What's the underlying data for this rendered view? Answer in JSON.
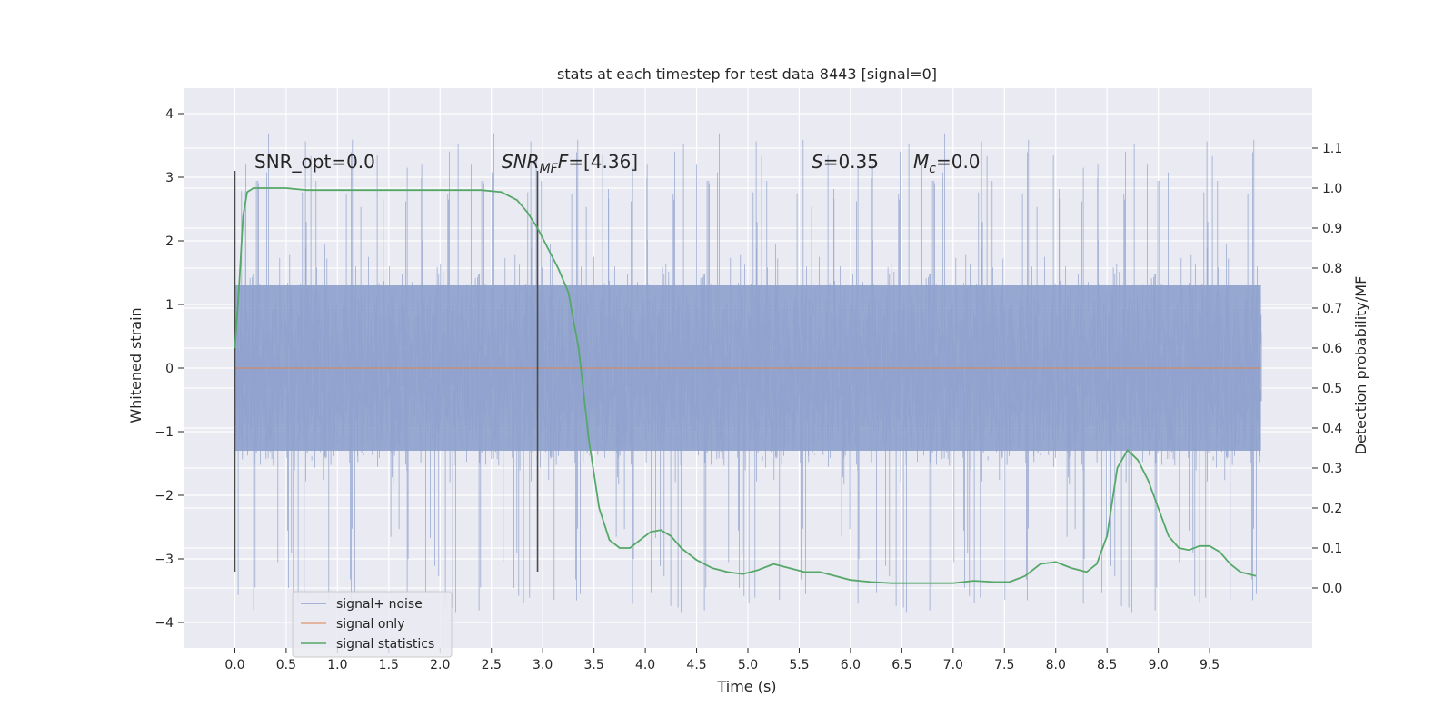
{
  "chart_data": {
    "type": "line",
    "title": "stats at each timestep for test data 8443 [signal=0]",
    "xlabel": "Time (s)",
    "ylabel": "Whitened strain",
    "y2label": "Detection probability/MF",
    "xlim": [
      -0.5,
      10.5
    ],
    "ylim": [
      -4.4,
      4.4
    ],
    "y2lim": [
      -0.15,
      1.25
    ],
    "x_ticks": [
      0.0,
      0.5,
      1.0,
      1.5,
      2.0,
      2.5,
      3.0,
      3.5,
      4.0,
      4.5,
      5.0,
      5.5,
      6.0,
      6.5,
      7.0,
      7.5,
      8.0,
      8.5,
      9.0,
      9.5
    ],
    "x_tick_labels": [
      "0.0",
      "0.5",
      "1.0",
      "1.5",
      "2.0",
      "2.5",
      "3.0",
      "3.5",
      "4.0",
      "4.5",
      "5.0",
      "5.5",
      "6.0",
      "6.5",
      "7.0",
      "7.5",
      "8.0",
      "8.5",
      "9.0",
      "9.5"
    ],
    "y_ticks": [
      -4,
      -3,
      -2,
      -1,
      0,
      1,
      2,
      3,
      4
    ],
    "y_tick_labels": [
      "−4",
      "−3",
      "−2",
      "−1",
      "0",
      "1",
      "2",
      "3",
      "4"
    ],
    "y2_ticks": [
      0.0,
      0.1,
      0.2,
      0.3,
      0.4,
      0.5,
      0.6,
      0.7,
      0.8,
      0.9,
      1.0,
      1.1
    ],
    "y2_tick_labels": [
      "0.0",
      "0.1",
      "0.2",
      "0.3",
      "0.4",
      "0.5",
      "0.6",
      "0.7",
      "0.8",
      "0.9",
      "1.0",
      "1.1"
    ],
    "grid": true,
    "legend_position": "lower-left",
    "annotations": {
      "snr_opt": "SNR_opt=0.0",
      "snr_mf_label": "SNR",
      "snr_mf_sub": "MF",
      "snr_mf_value": "=[4.36]",
      "s_label": "S",
      "s_value": "=0.35",
      "mc_label": "M",
      "mc_sub": "c",
      "mc_value": "=0.0"
    },
    "vlines": [
      {
        "x": 0.0,
        "ymin": -3.2,
        "ymax": 3.1
      },
      {
        "x": 2.95,
        "ymin": -3.2,
        "ymax": 3.1
      }
    ],
    "series": [
      {
        "name": "signal+ noise",
        "color": "#8ea1cc",
        "x_range": [
          0.0,
          10.0
        ],
        "core_band": [
          -1.3,
          1.3
        ],
        "upper_envelope": [
          1.8,
          2.2,
          2.4,
          2.6,
          2.8,
          2.9,
          3.0
        ],
        "lower_envelope": [
          -1.9,
          -2.3,
          -2.6,
          -2.9,
          -3.2,
          -3.6
        ],
        "max": 3.98,
        "min": -4.05
      },
      {
        "name": "signal only",
        "color": "#dd8452",
        "x": [
          0.0,
          10.0
        ],
        "values": [
          0.0,
          0.0
        ]
      },
      {
        "name": "signal statistics",
        "color": "#55a868",
        "axis": "right",
        "x": [
          0.0,
          0.04,
          0.08,
          0.12,
          0.18,
          0.25,
          0.35,
          0.5,
          0.7,
          1.0,
          1.3,
          1.6,
          2.0,
          2.4,
          2.6,
          2.75,
          2.85,
          2.95,
          3.05,
          3.15,
          3.25,
          3.35,
          3.45,
          3.55,
          3.65,
          3.75,
          3.85,
          3.95,
          4.05,
          4.15,
          4.25,
          4.35,
          4.5,
          4.65,
          4.8,
          4.95,
          5.1,
          5.25,
          5.4,
          5.55,
          5.7,
          5.85,
          6.0,
          6.2,
          6.4,
          6.6,
          6.8,
          7.0,
          7.2,
          7.4,
          7.55,
          7.7,
          7.85,
          8.0,
          8.15,
          8.3,
          8.4,
          8.5,
          8.6,
          8.7,
          8.8,
          8.9,
          9.0,
          9.1,
          9.2,
          9.3,
          9.4,
          9.5,
          9.6,
          9.7,
          9.8,
          9.95
        ],
        "values": [
          0.6,
          0.75,
          0.93,
          0.99,
          1.0,
          1.0,
          1.0,
          1.0,
          0.995,
          0.995,
          0.995,
          0.995,
          0.995,
          0.995,
          0.99,
          0.97,
          0.94,
          0.9,
          0.85,
          0.8,
          0.74,
          0.6,
          0.37,
          0.2,
          0.12,
          0.1,
          0.1,
          0.12,
          0.14,
          0.145,
          0.13,
          0.1,
          0.07,
          0.05,
          0.04,
          0.035,
          0.045,
          0.06,
          0.05,
          0.04,
          0.04,
          0.03,
          0.02,
          0.015,
          0.012,
          0.012,
          0.012,
          0.012,
          0.018,
          0.015,
          0.015,
          0.03,
          0.06,
          0.065,
          0.05,
          0.04,
          0.06,
          0.13,
          0.3,
          0.345,
          0.32,
          0.27,
          0.2,
          0.13,
          0.1,
          0.095,
          0.105,
          0.105,
          0.09,
          0.06,
          0.04,
          0.03
        ]
      }
    ]
  }
}
